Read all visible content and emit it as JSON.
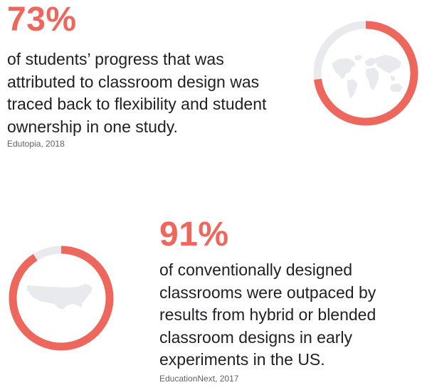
{
  "stats": [
    {
      "percent_label": "73%",
      "percent_value": 73,
      "description_lines": [
        "of students’ progress that was",
        "attributed to classroom design was",
        "traced back to flexibility and student",
        "ownership in one study."
      ],
      "source": "Edutopia, 2018",
      "icon": "world-map-icon"
    },
    {
      "percent_label": "91%",
      "percent_value": 91,
      "description_lines": [
        "of conventionally designed",
        "classrooms were outpaced by",
        "results from hybrid or blended",
        "classroom designs in early",
        "experiments in the US."
      ],
      "source": "EducationNext, 2017",
      "icon": "us-map-icon"
    }
  ],
  "colors": {
    "accent": "#ee675c",
    "ring_track": "#e8eaed",
    "map_fill": "#e8eaed",
    "text": "#202124",
    "source_text": "#5f6368"
  }
}
